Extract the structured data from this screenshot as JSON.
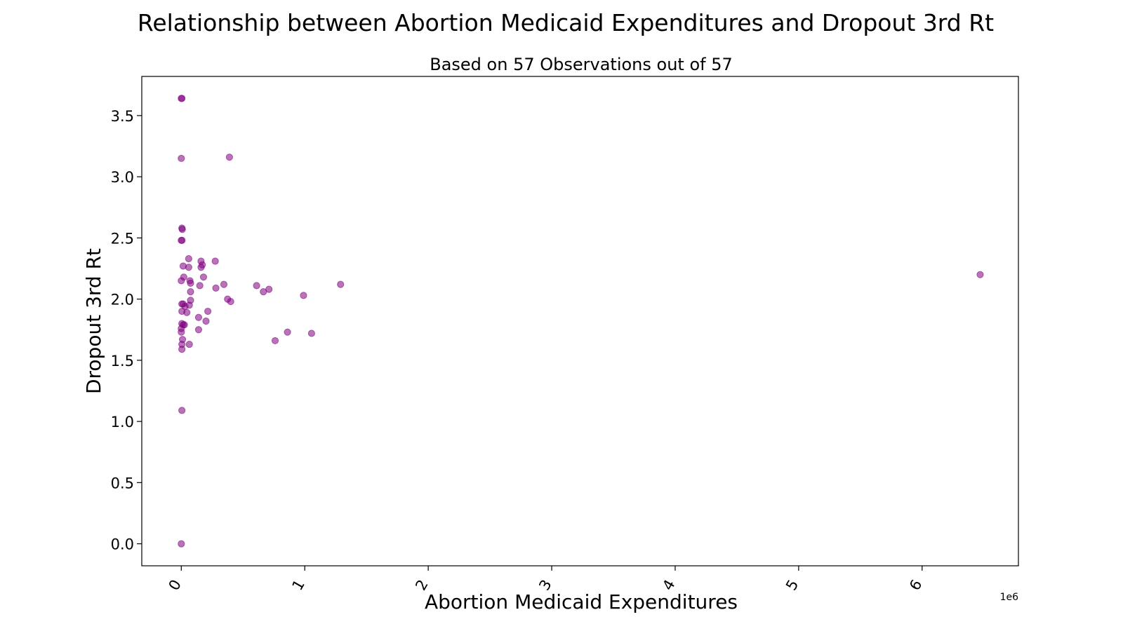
{
  "chart_data": {
    "type": "scatter",
    "title": "Relationship between Abortion Medicaid Expenditures and Dropout 3rd Rt",
    "subtitle": "Based on 57 Observations out of 57",
    "xlabel": "Abortion Medicaid Expenditures",
    "ylabel": "Dropout 3rd Rt",
    "x_offset_label": "1e6",
    "x_scale": 1000000,
    "xlim": [
      -320000,
      6780000
    ],
    "ylim": [
      -0.18,
      3.82
    ],
    "x_ticks": [
      0,
      1000000,
      2000000,
      3000000,
      4000000,
      5000000,
      6000000
    ],
    "x_tick_labels": [
      "0",
      "1",
      "2",
      "3",
      "4",
      "5",
      "6"
    ],
    "y_ticks": [
      0.0,
      0.5,
      1.0,
      1.5,
      2.0,
      2.5,
      3.0,
      3.5
    ],
    "y_tick_labels": [
      "0.0",
      "0.5",
      "1.0",
      "1.5",
      "2.0",
      "2.5",
      "3.0",
      "3.5"
    ],
    "grid": false,
    "marker_color": "#800080",
    "marker_opacity": 0.55,
    "points": [
      {
        "x": 0,
        "y": 3.64
      },
      {
        "x": 5000,
        "y": 3.64
      },
      {
        "x": 0,
        "y": 3.15
      },
      {
        "x": 390000,
        "y": 3.16
      },
      {
        "x": 5000,
        "y": 2.58
      },
      {
        "x": 8000,
        "y": 2.57
      },
      {
        "x": 0,
        "y": 2.48
      },
      {
        "x": 6000,
        "y": 2.48
      },
      {
        "x": 60000,
        "y": 2.33
      },
      {
        "x": 160000,
        "y": 2.31
      },
      {
        "x": 275000,
        "y": 2.31
      },
      {
        "x": 15000,
        "y": 2.27
      },
      {
        "x": 60000,
        "y": 2.26
      },
      {
        "x": 160000,
        "y": 2.26
      },
      {
        "x": 170000,
        "y": 2.28
      },
      {
        "x": 6470000,
        "y": 2.2
      },
      {
        "x": 20000,
        "y": 2.18
      },
      {
        "x": 180000,
        "y": 2.18
      },
      {
        "x": 0,
        "y": 2.15
      },
      {
        "x": 70000,
        "y": 2.15
      },
      {
        "x": 75000,
        "y": 2.13
      },
      {
        "x": 150000,
        "y": 2.11
      },
      {
        "x": 345000,
        "y": 2.12
      },
      {
        "x": 610000,
        "y": 2.11
      },
      {
        "x": 1290000,
        "y": 2.12
      },
      {
        "x": 280000,
        "y": 2.09
      },
      {
        "x": 710000,
        "y": 2.08
      },
      {
        "x": 75000,
        "y": 2.06
      },
      {
        "x": 665000,
        "y": 2.06
      },
      {
        "x": 990000,
        "y": 2.03
      },
      {
        "x": 375000,
        "y": 2.0
      },
      {
        "x": 75000,
        "y": 1.99
      },
      {
        "x": 400000,
        "y": 1.98
      },
      {
        "x": 5000,
        "y": 1.96
      },
      {
        "x": 15000,
        "y": 1.96
      },
      {
        "x": 65000,
        "y": 1.95
      },
      {
        "x": 30000,
        "y": 1.94
      },
      {
        "x": 5000,
        "y": 1.9
      },
      {
        "x": 45000,
        "y": 1.89
      },
      {
        "x": 215000,
        "y": 1.9
      },
      {
        "x": 140000,
        "y": 1.85
      },
      {
        "x": 200000,
        "y": 1.82
      },
      {
        "x": 5000,
        "y": 1.8
      },
      {
        "x": 15000,
        "y": 1.79
      },
      {
        "x": 25000,
        "y": 1.79
      },
      {
        "x": 0,
        "y": 1.76
      },
      {
        "x": 0,
        "y": 1.73
      },
      {
        "x": 140000,
        "y": 1.75
      },
      {
        "x": 860000,
        "y": 1.73
      },
      {
        "x": 1055000,
        "y": 1.72
      },
      {
        "x": 760000,
        "y": 1.66
      },
      {
        "x": 10000,
        "y": 1.67
      },
      {
        "x": 5000,
        "y": 1.63
      },
      {
        "x": 65000,
        "y": 1.63
      },
      {
        "x": 5000,
        "y": 1.59
      },
      {
        "x": 5000,
        "y": 1.09
      },
      {
        "x": 0,
        "y": 0.0
      }
    ]
  }
}
